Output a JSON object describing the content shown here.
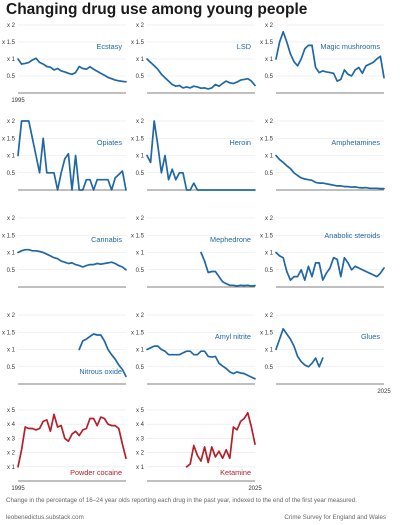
{
  "title": "Changing drug use among young people",
  "footnote": "Change in the percentage of 16–24 year olds reporting each drug in the past year, indexed to the end of the first year measured.",
  "source_left": "leobenedictus.substack.com",
  "source_right": "Crime Survey for England and Wales",
  "colors": {
    "blue": "#1f67a5",
    "red": "#b3202a",
    "grid": "#e6e6e6",
    "axis": "#555555"
  },
  "chart_data": [
    {
      "type": "line",
      "title": "Ecstasy",
      "color": "#1f67a5",
      "ylim": [
        0,
        2
      ],
      "yticks": [
        "x 1",
        "x 1.5",
        "x 2"
      ],
      "yticks_values": [
        1,
        1.5,
        2
      ],
      "extra_ytick": "0.5",
      "xlim": [
        1995,
        2025
      ],
      "xticks": [
        "1995"
      ],
      "x": [
        1995,
        1996,
        1997,
        1998,
        1999,
        2000,
        2001,
        2002,
        2003,
        2004,
        2005,
        2006,
        2007,
        2008,
        2009,
        2010,
        2011,
        2012,
        2013,
        2014,
        2015,
        2016,
        2017,
        2018,
        2019,
        2020,
        2021,
        2022,
        2023,
        2024,
        2025
      ],
      "values": [
        1.0,
        0.85,
        0.87,
        0.9,
        0.97,
        1.02,
        0.9,
        0.85,
        0.78,
        0.76,
        0.68,
        0.72,
        0.65,
        0.62,
        0.58,
        0.55,
        0.6,
        0.78,
        0.72,
        0.7,
        0.77,
        0.7,
        0.64,
        0.58,
        0.52,
        0.46,
        0.42,
        0.38,
        0.36,
        0.34,
        0.33
      ]
    },
    {
      "type": "line",
      "title": "LSD",
      "color": "#1f67a5",
      "ylim": [
        0,
        2
      ],
      "yticks": [
        "x 1",
        "x 1.5",
        "x 2"
      ],
      "yticks_values": [
        1,
        1.5,
        2
      ],
      "extra_ytick": "0.5",
      "xlim": [
        1995,
        2025
      ],
      "xticks": [],
      "x": [
        1995,
        1996,
        1997,
        1998,
        1999,
        2000,
        2001,
        2002,
        2003,
        2004,
        2005,
        2006,
        2007,
        2008,
        2009,
        2010,
        2011,
        2012,
        2013,
        2014,
        2015,
        2016,
        2017,
        2018,
        2019,
        2020,
        2021,
        2022,
        2023,
        2024,
        2025
      ],
      "values": [
        1.0,
        0.9,
        0.8,
        0.7,
        0.55,
        0.45,
        0.35,
        0.25,
        0.2,
        0.22,
        0.15,
        0.18,
        0.15,
        0.2,
        0.18,
        0.14,
        0.15,
        0.12,
        0.15,
        0.25,
        0.2,
        0.28,
        0.35,
        0.3,
        0.28,
        0.32,
        0.38,
        0.4,
        0.42,
        0.35,
        0.22
      ]
    },
    {
      "type": "line",
      "title": "Magic mushrooms",
      "color": "#1f67a5",
      "ylim": [
        0,
        2
      ],
      "yticks": [
        "x 1",
        "x 1.5",
        "x 2"
      ],
      "yticks_values": [
        1,
        1.5,
        2
      ],
      "extra_ytick": "0.5",
      "xlim": [
        1995,
        2025
      ],
      "xticks": [],
      "x": [
        1995,
        1996,
        1997,
        1998,
        1999,
        2000,
        2001,
        2002,
        2003,
        2004,
        2005,
        2006,
        2007,
        2008,
        2009,
        2010,
        2011,
        2012,
        2013,
        2014,
        2015,
        2016,
        2017,
        2018,
        2019,
        2020,
        2021,
        2022,
        2023,
        2024,
        2025
      ],
      "values": [
        1.0,
        1.5,
        1.8,
        1.5,
        1.15,
        0.92,
        0.8,
        1.0,
        1.3,
        1.4,
        1.4,
        0.75,
        0.6,
        0.65,
        0.62,
        0.6,
        0.58,
        0.35,
        0.4,
        0.68,
        0.55,
        0.5,
        0.68,
        0.75,
        0.58,
        0.8,
        0.85,
        0.9,
        1.0,
        1.08,
        0.45
      ]
    },
    {
      "type": "line",
      "title": "Opiates",
      "color": "#1f67a5",
      "ylim": [
        0,
        2
      ],
      "yticks": [
        "x 1",
        "x 1.5",
        "x 2"
      ],
      "yticks_values": [
        1,
        1.5,
        2
      ],
      "extra_ytick": "0.5",
      "xlim": [
        1995,
        2025
      ],
      "xticks": [],
      "x": [
        1995,
        1996,
        1997,
        1998,
        1999,
        2000,
        2001,
        2002,
        2003,
        2004,
        2005,
        2006,
        2007,
        2008,
        2009,
        2010,
        2011,
        2012,
        2013,
        2014,
        2015,
        2016,
        2017,
        2018,
        2019,
        2020,
        2021,
        2022,
        2023,
        2024,
        2025
      ],
      "values": [
        1.0,
        2.0,
        2.0,
        2.0,
        1.5,
        1.0,
        0.5,
        1.5,
        0.5,
        0.5,
        0.5,
        0.0,
        0.5,
        0.9,
        1.05,
        0.0,
        1.0,
        0.0,
        0.0,
        0.3,
        0.3,
        0.0,
        0.3,
        0.3,
        0.3,
        0.3,
        0.0,
        0.35,
        0.45,
        0.55,
        0.0
      ]
    },
    {
      "type": "line",
      "title": "Heroin",
      "color": "#1f67a5",
      "ylim": [
        0,
        2
      ],
      "yticks": [
        "x 1",
        "x 1.5",
        "x 2"
      ],
      "yticks_values": [
        1,
        1.5,
        2
      ],
      "extra_ytick": "0.5",
      "xlim": [
        1995,
        2025
      ],
      "xticks": [],
      "x": [
        1995,
        1996,
        1997,
        1998,
        1999,
        2000,
        2001,
        2002,
        2003,
        2004,
        2005,
        2006,
        2007,
        2008,
        2009,
        2010,
        2011,
        2012,
        2013,
        2014,
        2015,
        2016,
        2017,
        2018,
        2019,
        2020,
        2021,
        2022,
        2023,
        2024,
        2025
      ],
      "values": [
        1.0,
        0.8,
        2.0,
        1.3,
        0.5,
        1.0,
        0.3,
        0.6,
        0.3,
        0.5,
        0.5,
        0.0,
        0.0,
        0.2,
        0.0,
        0.0,
        0.0,
        0.0,
        0.0,
        0.0,
        0.0,
        0.0,
        0.0,
        0.0,
        0.0,
        0.0,
        0.0,
        0.0,
        0.0,
        0.0,
        0.0
      ]
    },
    {
      "type": "line",
      "title": "Amphetamines",
      "color": "#1f67a5",
      "ylim": [
        0,
        2
      ],
      "yticks": [
        "x 1",
        "x 1.5",
        "x 2"
      ],
      "yticks_values": [
        1,
        1.5,
        2
      ],
      "extra_ytick": "0.5",
      "xlim": [
        1995,
        2025
      ],
      "xticks": [],
      "x": [
        1995,
        1996,
        1997,
        1998,
        1999,
        2000,
        2001,
        2002,
        2003,
        2004,
        2005,
        2006,
        2007,
        2008,
        2009,
        2010,
        2011,
        2012,
        2013,
        2014,
        2015,
        2016,
        2017,
        2018,
        2019,
        2020,
        2021,
        2022,
        2023,
        2024,
        2025
      ],
      "values": [
        1.0,
        0.88,
        0.8,
        0.7,
        0.62,
        0.5,
        0.42,
        0.35,
        0.32,
        0.3,
        0.28,
        0.22,
        0.2,
        0.2,
        0.18,
        0.16,
        0.14,
        0.12,
        0.12,
        0.1,
        0.1,
        0.08,
        0.09,
        0.07,
        0.06,
        0.07,
        0.05,
        0.05,
        0.05,
        0.04,
        0.04
      ]
    },
    {
      "type": "line",
      "title": "Cannabis",
      "color": "#1f67a5",
      "ylim": [
        0,
        2
      ],
      "yticks": [
        "x 1",
        "x 1.5",
        "x 2"
      ],
      "yticks_values": [
        1,
        1.5,
        2
      ],
      "extra_ytick": "0.5",
      "xlim": [
        1995,
        2025
      ],
      "xticks": [],
      "x": [
        1995,
        1996,
        1997,
        1998,
        1999,
        2000,
        2001,
        2002,
        2003,
        2004,
        2005,
        2006,
        2007,
        2008,
        2009,
        2010,
        2011,
        2012,
        2013,
        2014,
        2015,
        2016,
        2017,
        2018,
        2019,
        2020,
        2021,
        2022,
        2023,
        2024,
        2025
      ],
      "values": [
        1.0,
        1.05,
        1.08,
        1.08,
        1.05,
        1.05,
        1.03,
        1.0,
        0.95,
        0.9,
        0.85,
        0.82,
        0.75,
        0.72,
        0.68,
        0.7,
        0.65,
        0.62,
        0.58,
        0.62,
        0.65,
        0.65,
        0.68,
        0.66,
        0.68,
        0.7,
        0.72,
        0.68,
        0.62,
        0.58,
        0.5
      ]
    },
    {
      "type": "line",
      "title": "Mephedrone",
      "color": "#1f67a5",
      "ylim": [
        0,
        2
      ],
      "yticks": [
        "x 1",
        "x 1.5",
        "x 2"
      ],
      "yticks_values": [
        1,
        1.5,
        2
      ],
      "extra_ytick": "0.5",
      "xlim": [
        1995,
        2025
      ],
      "xticks": [],
      "x": [
        2010,
        2011,
        2012,
        2013,
        2014,
        2015,
        2016,
        2017,
        2018,
        2019,
        2020,
        2021,
        2022,
        2023,
        2024,
        2025
      ],
      "values": [
        1.0,
        0.75,
        0.42,
        0.45,
        0.45,
        0.3,
        0.15,
        0.1,
        0.05,
        0.05,
        0.03,
        0.05,
        0.04,
        0.05,
        0.03,
        0.04
      ]
    },
    {
      "type": "line",
      "title": "Anabolic steroids",
      "color": "#1f67a5",
      "ylim": [
        0,
        2
      ],
      "yticks": [
        "x 1",
        "x 1.5",
        "x 2"
      ],
      "yticks_values": [
        1,
        1.5,
        2
      ],
      "extra_ytick": "0.5",
      "xlim": [
        1995,
        2025
      ],
      "xticks": [],
      "x": [
        1995,
        1996,
        1997,
        1998,
        1999,
        2000,
        2001,
        2002,
        2003,
        2004,
        2005,
        2006,
        2007,
        2008,
        2009,
        2010,
        2011,
        2012,
        2013,
        2014,
        2015,
        2016,
        2017,
        2018,
        2019,
        2020,
        2021,
        2022,
        2023,
        2024,
        2025
      ],
      "values": [
        1.0,
        0.9,
        0.85,
        0.45,
        0.2,
        0.3,
        0.3,
        0.5,
        0.2,
        0.6,
        0.3,
        0.7,
        0.7,
        0.2,
        0.4,
        0.55,
        0.85,
        0.8,
        0.3,
        0.85,
        0.7,
        0.5,
        0.6,
        0.55,
        0.5,
        0.45,
        0.4,
        0.35,
        0.3,
        0.4,
        0.55
      ]
    },
    {
      "type": "line",
      "title": "Nitrous oxide",
      "color": "#1f67a5",
      "ylim": [
        0,
        2
      ],
      "yticks": [
        "x 1",
        "x 1.5",
        "x 2"
      ],
      "yticks_values": [
        1,
        1.5,
        2
      ],
      "extra_ytick": "0.5",
      "xlim": [
        1995,
        2025
      ],
      "xticks": [],
      "x": [
        2012,
        2013,
        2014,
        2015,
        2016,
        2017,
        2018,
        2019,
        2020,
        2021,
        2022,
        2023,
        2024,
        2025
      ],
      "values": [
        1.0,
        1.25,
        1.3,
        1.38,
        1.45,
        1.42,
        1.42,
        1.25,
        1.0,
        0.85,
        0.72,
        0.55,
        0.42,
        0.22
      ]
    },
    {
      "type": "line",
      "title": "Amyl nitrite",
      "color": "#1f67a5",
      "ylim": [
        0,
        2
      ],
      "yticks": [
        "x 1",
        "x 1.5",
        "x 2"
      ],
      "yticks_values": [
        1,
        1.5,
        2
      ],
      "extra_ytick": "0.5",
      "xlim": [
        1995,
        2025
      ],
      "xticks": [],
      "x": [
        1995,
        1996,
        1997,
        1998,
        1999,
        2000,
        2001,
        2002,
        2003,
        2004,
        2005,
        2006,
        2007,
        2008,
        2009,
        2010,
        2011,
        2012,
        2013,
        2014,
        2015,
        2016,
        2017,
        2018,
        2019,
        2020,
        2021,
        2022,
        2023,
        2024,
        2025
      ],
      "values": [
        1.0,
        1.05,
        1.1,
        1.1,
        1.0,
        0.95,
        0.85,
        0.85,
        0.85,
        0.85,
        0.9,
        0.95,
        0.95,
        0.85,
        0.85,
        0.95,
        0.95,
        0.8,
        0.78,
        0.8,
        0.6,
        0.52,
        0.45,
        0.35,
        0.3,
        0.35,
        0.32,
        0.3,
        0.25,
        0.2,
        0.15
      ]
    },
    {
      "type": "line",
      "title": "Glues",
      "color": "#1f67a5",
      "ylim": [
        0,
        2
      ],
      "yticks": [
        "x 1",
        "x 1.5",
        "x 2"
      ],
      "yticks_values": [
        1,
        1.5,
        2
      ],
      "extra_ytick": "0.5",
      "xlim": [
        1995,
        2025
      ],
      "xticks": [
        "2025"
      ],
      "x": [
        1995,
        1996,
        1997,
        1998,
        1999,
        2000,
        2001,
        2002,
        2003,
        2004,
        2005,
        2006,
        2007,
        2008
      ],
      "values": [
        1.0,
        1.3,
        1.6,
        1.45,
        1.3,
        1.1,
        0.8,
        0.65,
        0.55,
        0.5,
        0.6,
        0.75,
        0.5,
        0.75
      ]
    },
    {
      "type": "line",
      "title": "Powder cocaine",
      "color": "#b3202a",
      "ylim": [
        0,
        5
      ],
      "yticks": [
        "x 1",
        "x 2",
        "x 3",
        "x 4",
        "x 5"
      ],
      "yticks_values": [
        1,
        2,
        3,
        4,
        5
      ],
      "xlim": [
        1995,
        2025
      ],
      "xticks": [
        "1995"
      ],
      "x": [
        1995,
        1996,
        1997,
        1998,
        1999,
        2000,
        2001,
        2002,
        2003,
        2004,
        2005,
        2006,
        2007,
        2008,
        2009,
        2010,
        2011,
        2012,
        2013,
        2014,
        2015,
        2016,
        2017,
        2018,
        2019,
        2020,
        2021,
        2022,
        2023,
        2024,
        2025
      ],
      "values": [
        1.0,
        2.2,
        3.8,
        3.7,
        3.7,
        3.6,
        3.7,
        4.2,
        4.3,
        3.5,
        4.7,
        3.8,
        3.9,
        3.0,
        2.8,
        3.3,
        3.5,
        3.2,
        3.6,
        3.7,
        4.4,
        4.4,
        3.9,
        4.5,
        4.4,
        4.0,
        3.9,
        3.9,
        3.7,
        2.6,
        1.6
      ]
    },
    {
      "type": "line",
      "title": "Ketamine",
      "color": "#b3202a",
      "ylim": [
        0,
        5
      ],
      "yticks": [
        "x 1",
        "x 2",
        "x 3",
        "x 4",
        "x 5"
      ],
      "yticks_values": [
        1,
        2,
        3,
        4,
        5
      ],
      "xlim": [
        1995,
        2025
      ],
      "xticks": [
        "2025"
      ],
      "x": [
        2006,
        2007,
        2008,
        2009,
        2010,
        2011,
        2012,
        2013,
        2014,
        2015,
        2016,
        2017,
        2018,
        2019,
        2020,
        2021,
        2022,
        2023,
        2024,
        2025
      ],
      "values": [
        1.0,
        1.2,
        2.5,
        1.8,
        1.4,
        2.4,
        1.3,
        2.4,
        1.7,
        2.1,
        1.6,
        2.2,
        1.6,
        3.8,
        3.6,
        4.2,
        4.4,
        4.8,
        3.8,
        2.6
      ]
    }
  ]
}
